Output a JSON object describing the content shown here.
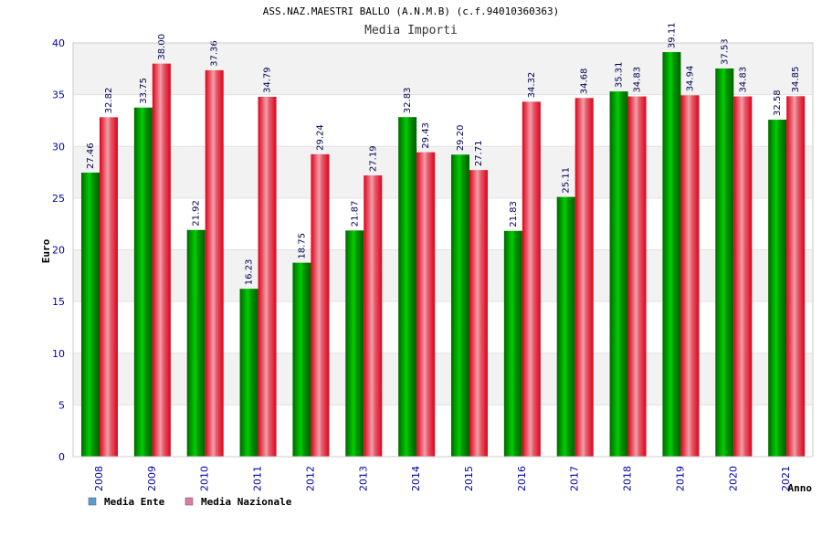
{
  "chart_data": {
    "type": "bar",
    "title": "ASS.NAZ.MAESTRI BALLO (A.N.M.B) (c.f.94010360363)",
    "subtitle": "Media Importi",
    "xlabel": "Anno",
    "ylabel": "Euro",
    "ylim": [
      0,
      40
    ],
    "yticks": [
      0,
      5,
      10,
      15,
      20,
      25,
      30,
      35,
      40
    ],
    "grid": true,
    "legend_position": "bottom-left",
    "categories": [
      "2008",
      "2009",
      "2010",
      "2011",
      "2012",
      "2013",
      "2014",
      "2015",
      "2016",
      "2017",
      "2018",
      "2019",
      "2020",
      "2021"
    ],
    "value_labels": {
      "ente": [
        "27.46",
        "33.75",
        "21.92",
        "16.23",
        "18.75",
        "21.87",
        "32.83",
        "29.20",
        "21.83",
        "25.11",
        "35.31",
        "39.11",
        "37.53",
        "32.58"
      ],
      "nazionale": [
        "32.82",
        "38.00",
        "37.36",
        "34.79",
        "29.24",
        "27.19",
        "29.43",
        "27.71",
        "34.32",
        "34.68",
        "34.83",
        "34.94",
        "34.83",
        "34.85"
      ]
    },
    "series": [
      {
        "name": "Media Ente",
        "key": "ente",
        "bar_color": "#00b000",
        "legend_color": "#5b9bd5",
        "values": [
          27.46,
          33.75,
          21.92,
          16.23,
          18.75,
          21.87,
          32.83,
          29.2,
          21.83,
          25.11,
          35.31,
          39.11,
          37.53,
          32.58
        ]
      },
      {
        "name": "Media Nazionale",
        "key": "nazionale",
        "bar_color": "#e8141c",
        "legend_color": "#e07ba8",
        "values": [
          32.82,
          38.0,
          37.36,
          34.79,
          29.24,
          27.19,
          29.43,
          27.71,
          34.32,
          34.68,
          34.83,
          34.94,
          34.83,
          34.85
        ]
      }
    ]
  }
}
